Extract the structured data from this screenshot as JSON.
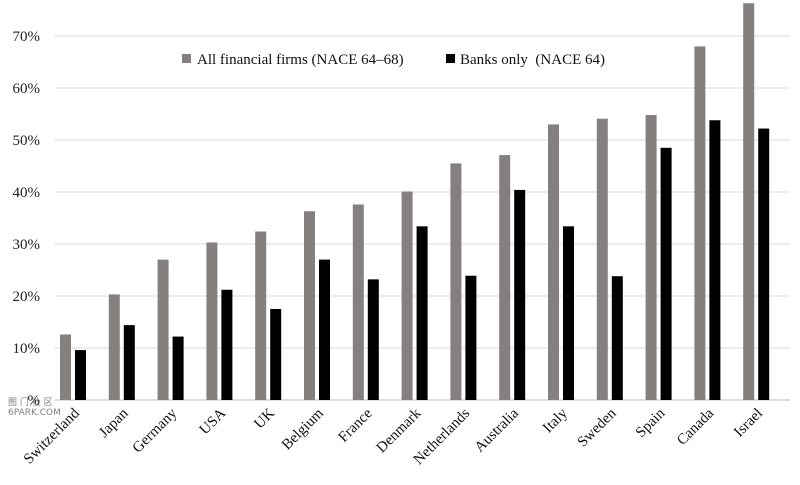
{
  "chart_data": {
    "type": "bar",
    "categories": [
      "Switzerland",
      "Japan",
      "Germany",
      "USA",
      "UK",
      "Belgium",
      "France",
      "Denmark",
      "Netherlands",
      "Australia",
      "Italy",
      "Sweden",
      "Spain",
      "Canada",
      "Israel"
    ],
    "series": [
      {
        "name": "All financial firms (NACE 64–68)",
        "color": "#858080",
        "values": [
          12.6,
          20.3,
          27.0,
          30.3,
          32.4,
          36.3,
          37.6,
          40.1,
          45.5,
          47.1,
          53.0,
          54.1,
          54.8,
          68.0,
          76.3
        ]
      },
      {
        "name": "Banks only  (NACE 64)",
        "color": "#000000",
        "values": [
          9.6,
          14.4,
          12.2,
          21.2,
          17.5,
          27.0,
          23.2,
          33.4,
          23.9,
          40.4,
          33.4,
          23.8,
          48.5,
          53.8,
          52.2
        ]
      }
    ],
    "y_ticks": [
      "%",
      "10%",
      "20%",
      "30%",
      "40%",
      "50%",
      "60%",
      "70%"
    ],
    "ylim": [
      0,
      76.3
    ],
    "grid": true,
    "legend_position": "top-center"
  },
  "watermark": {
    "line1": "图 门 社 区",
    "line2": "6PARK.COM"
  }
}
